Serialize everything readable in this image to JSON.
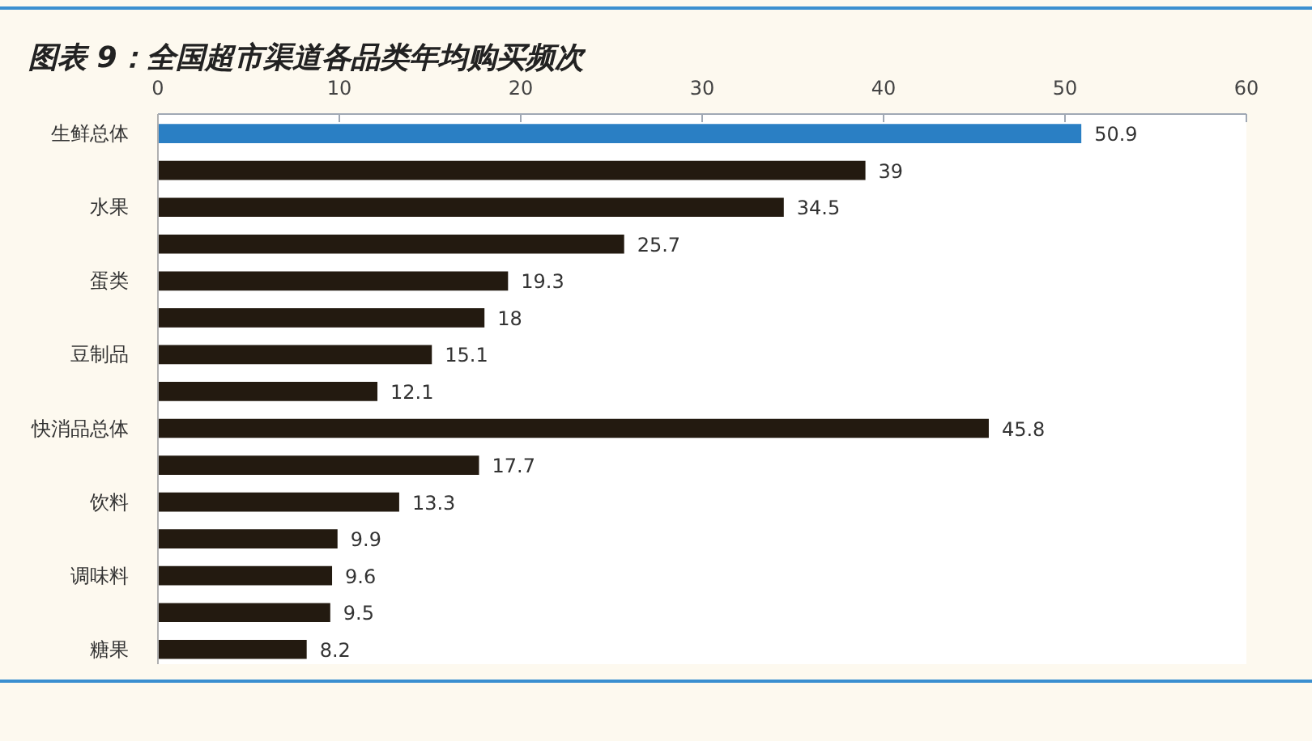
{
  "chart_data": {
    "type": "bar",
    "orientation": "horizontal",
    "title": "图表 9：全国超市渠道各品类年均购买频次",
    "categories": [
      "生鲜总体",
      null,
      "水果",
      null,
      "蛋类",
      null,
      "豆制品",
      null,
      "快消品总体",
      null,
      "饮料",
      null,
      "调味料",
      null,
      "糖果"
    ],
    "values": [
      50.9,
      39,
      34.5,
      25.7,
      19.3,
      18,
      15.1,
      12.1,
      45.8,
      17.7,
      13.3,
      9.9,
      9.6,
      9.5,
      8.2
    ],
    "colors": [
      "#2a7fc4",
      "#231a10",
      "#231a10",
      "#231a10",
      "#231a10",
      "#231a10",
      "#231a10",
      "#231a10",
      "#231a10",
      "#231a10",
      "#231a10",
      "#231a10",
      "#231a10",
      "#231a10",
      "#231a10"
    ],
    "xlim": [
      0,
      60
    ],
    "xticks": [
      0,
      10,
      20,
      30,
      40,
      50,
      60
    ],
    "data_labels": true
  }
}
